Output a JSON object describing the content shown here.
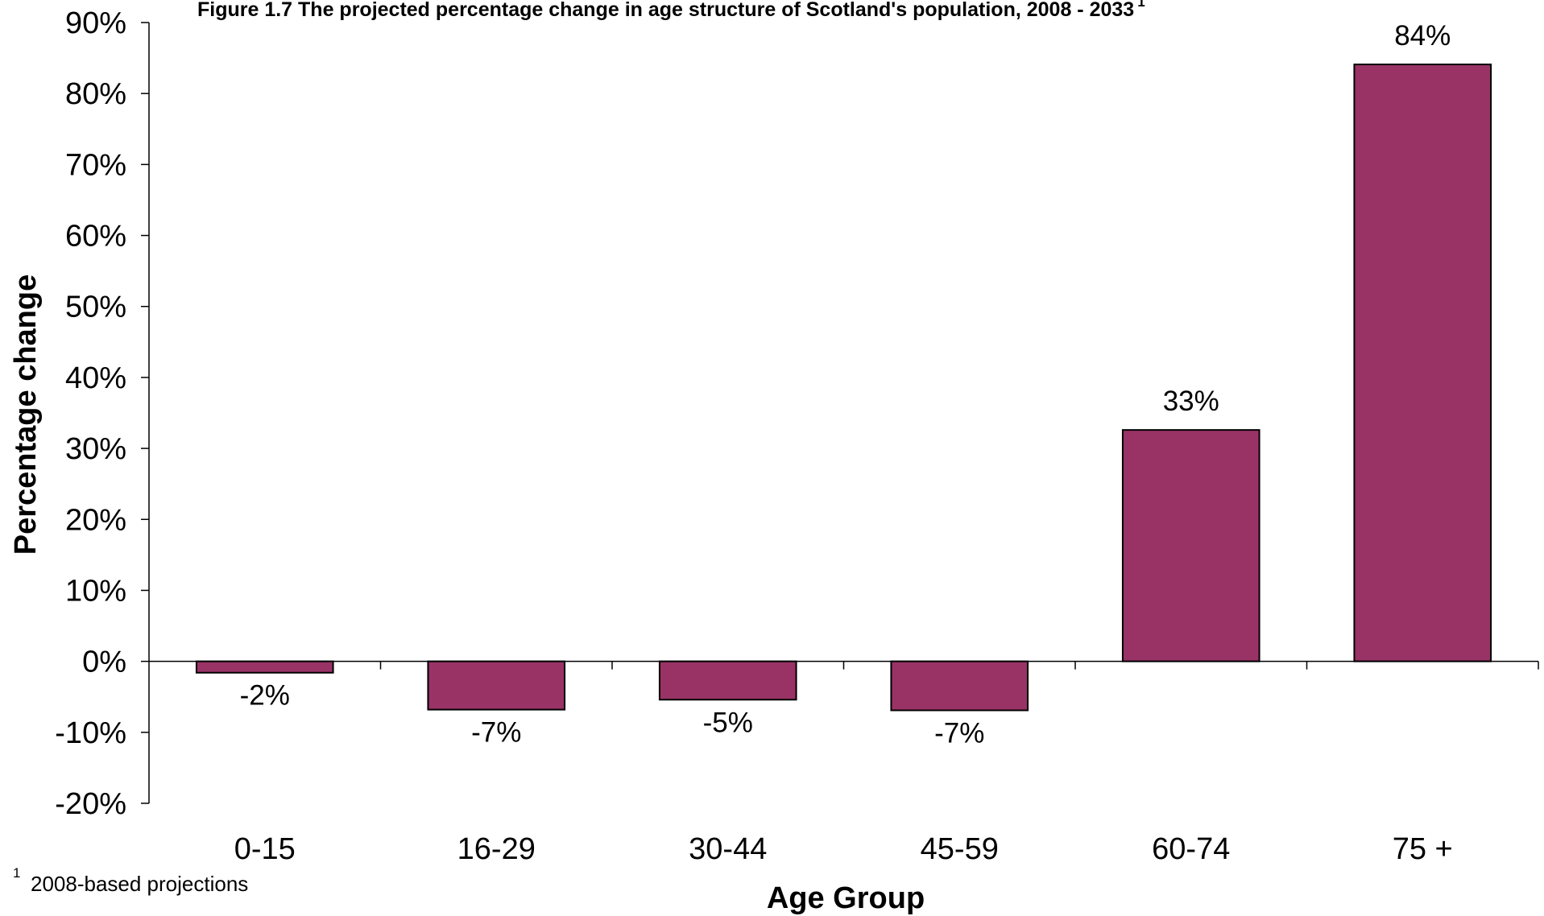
{
  "chart_data": {
    "type": "bar",
    "title": "Figure 1.7 The projected percentage change in age structure of Scotland's population, 2008 - 2033",
    "title_superscript": "1",
    "xlabel": "Age Group",
    "ylabel": "Percentage change",
    "categories": [
      "0-15",
      "16-29",
      "30-44",
      "45-59",
      "60-74",
      "75 +"
    ],
    "values": [
      -1.6,
      -6.8,
      -5.4,
      -6.9,
      32.6,
      84.1
    ],
    "data_labels": [
      "-2%",
      "-7%",
      "-5%",
      "-7%",
      "33%",
      "84%"
    ],
    "ylim": [
      -20,
      90
    ],
    "yticks": [
      -20,
      -10,
      0,
      10,
      20,
      30,
      40,
      50,
      60,
      70,
      80,
      90
    ],
    "ytick_labels": [
      "-20%",
      "-10%",
      "0%",
      "10%",
      "20%",
      "30%",
      "40%",
      "50%",
      "60%",
      "70%",
      "80%",
      "90%"
    ],
    "bar_color": "#993366",
    "grid": false,
    "legend": "none",
    "footnote_marker": "1",
    "footnote": "2008-based projections"
  }
}
